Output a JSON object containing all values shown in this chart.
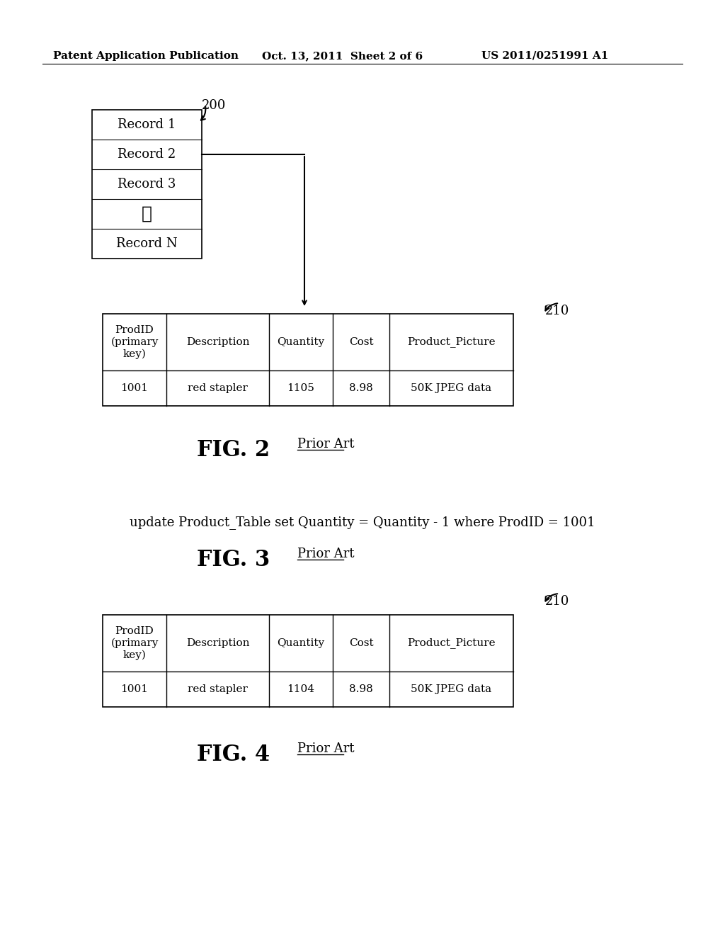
{
  "bg_color": "#ffffff",
  "header_text": {
    "left": "Patent Application Publication",
    "center": "Oct. 13, 2011  Sheet 2 of 6",
    "right": "US 2011/0251991 A1",
    "fontsize": 11
  },
  "fig2": {
    "label": "200",
    "records": [
      "Record 1",
      "Record 2",
      "Record 3",
      "⋮",
      "Record N"
    ],
    "table_label": "210",
    "table_headers": [
      "ProdID\n(primary\nkey)",
      "Description",
      "Quantity",
      "Cost",
      "Product_Picture"
    ],
    "table_row": [
      "1001",
      "red stapler",
      "1105",
      "8.98",
      "50K JPEG data"
    ],
    "fig_label": "FIG. 2",
    "prior_art": "Prior Art"
  },
  "fig3": {
    "sql_text": "update Product_Table set Quantity = Quantity - 1 where ProdID = 1001",
    "fig_label": "FIG. 3",
    "prior_art": "Prior Art"
  },
  "fig4": {
    "table_label": "210",
    "table_headers": [
      "ProdID\n(primary\nkey)",
      "Description",
      "Quantity",
      "Cost",
      "Product_Picture"
    ],
    "table_row": [
      "1001",
      "red stapler",
      "1104",
      "8.98",
      "50K JPEG data"
    ],
    "fig_label": "FIG. 4",
    "prior_art": "Prior Art"
  }
}
